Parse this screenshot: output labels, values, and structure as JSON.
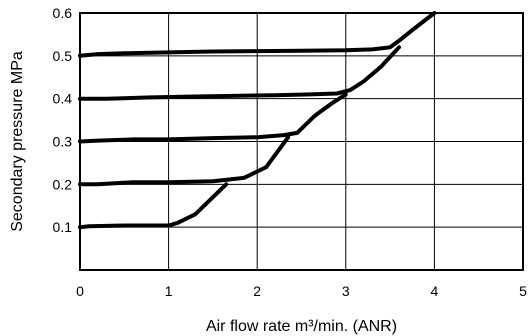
{
  "chart_data": {
    "type": "line",
    "title": "",
    "xlabel": "Air flow rate m³/min. (ANR)",
    "ylabel": "Secondary pressure MPa",
    "xlim": [
      0,
      5
    ],
    "ylim": [
      0,
      0.6
    ],
    "x_ticks": [
      "0",
      "1",
      "2",
      "3",
      "4",
      "5"
    ],
    "y_ticks": [
      "0.1",
      "0.2",
      "0.3",
      "0.4",
      "0.5",
      "0.6"
    ],
    "grid": true,
    "legend": "none",
    "line_color": "#000000",
    "series": [
      {
        "points": [
          [
            0.0,
            0.1
          ],
          [
            0.1,
            0.102
          ],
          [
            0.5,
            0.104
          ],
          [
            1.0,
            0.104
          ],
          [
            1.1,
            0.11
          ],
          [
            1.3,
            0.13
          ],
          [
            1.65,
            0.2
          ]
        ]
      },
      {
        "points": [
          [
            0.0,
            0.2
          ],
          [
            0.2,
            0.2
          ],
          [
            0.6,
            0.205
          ],
          [
            1.0,
            0.205
          ],
          [
            1.5,
            0.207
          ],
          [
            1.85,
            0.215
          ],
          [
            2.0,
            0.23
          ],
          [
            2.1,
            0.24
          ],
          [
            2.35,
            0.31
          ]
        ]
      },
      {
        "points": [
          [
            0.0,
            0.3
          ],
          [
            0.2,
            0.302
          ],
          [
            0.6,
            0.305
          ],
          [
            1.0,
            0.305
          ],
          [
            1.5,
            0.308
          ],
          [
            2.0,
            0.31
          ],
          [
            2.3,
            0.315
          ],
          [
            2.45,
            0.32
          ],
          [
            2.65,
            0.36
          ],
          [
            2.85,
            0.39
          ],
          [
            3.0,
            0.41
          ]
        ]
      },
      {
        "points": [
          [
            0.0,
            0.4
          ],
          [
            0.3,
            0.4
          ],
          [
            0.8,
            0.403
          ],
          [
            1.3,
            0.405
          ],
          [
            1.8,
            0.407
          ],
          [
            2.2,
            0.408
          ],
          [
            2.6,
            0.41
          ],
          [
            2.9,
            0.412
          ],
          [
            3.05,
            0.42
          ],
          [
            3.2,
            0.44
          ],
          [
            3.4,
            0.475
          ],
          [
            3.6,
            0.52
          ]
        ]
      },
      {
        "points": [
          [
            0.0,
            0.5
          ],
          [
            0.2,
            0.504
          ],
          [
            0.5,
            0.506
          ],
          [
            1.0,
            0.508
          ],
          [
            1.5,
            0.51
          ],
          [
            2.0,
            0.511
          ],
          [
            2.5,
            0.512
          ],
          [
            3.0,
            0.513
          ],
          [
            3.3,
            0.515
          ],
          [
            3.5,
            0.52
          ],
          [
            3.6,
            0.535
          ],
          [
            3.75,
            0.56
          ],
          [
            4.0,
            0.6
          ]
        ]
      }
    ]
  }
}
